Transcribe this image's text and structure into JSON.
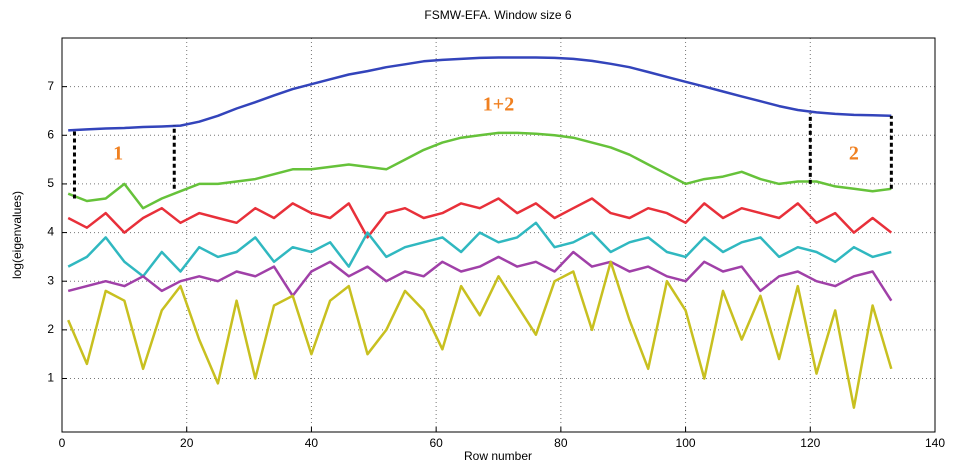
{
  "chart_data": {
    "type": "line",
    "title": "FSMW-EFA. Window size 6",
    "xlabel": "Row number",
    "ylabel": "log(eigenvalues)",
    "xlim": [
      0,
      140
    ],
    "xticks": [
      0,
      20,
      40,
      60,
      80,
      100,
      120,
      140
    ],
    "ylim": [
      -0.1,
      8
    ],
    "yticks": [
      1,
      2,
      3,
      4,
      5,
      6,
      7
    ],
    "grid": true,
    "x": [
      1,
      4,
      7,
      10,
      13,
      16,
      19,
      22,
      25,
      28,
      31,
      34,
      37,
      40,
      43,
      46,
      49,
      52,
      55,
      58,
      61,
      64,
      67,
      70,
      73,
      76,
      79,
      82,
      85,
      88,
      91,
      94,
      97,
      100,
      103,
      106,
      109,
      112,
      115,
      118,
      121,
      124,
      127,
      130,
      133
    ],
    "series": [
      {
        "color": "#3344bb",
        "values": [
          6.1,
          6.12,
          6.14,
          6.15,
          6.17,
          6.18,
          6.2,
          6.28,
          6.4,
          6.55,
          6.68,
          6.82,
          6.95,
          7.05,
          7.15,
          7.25,
          7.32,
          7.4,
          7.46,
          7.52,
          7.55,
          7.57,
          7.59,
          7.6,
          7.6,
          7.6,
          7.59,
          7.57,
          7.53,
          7.47,
          7.4,
          7.3,
          7.2,
          7.1,
          7.0,
          6.9,
          6.8,
          6.7,
          6.6,
          6.52,
          6.47,
          6.44,
          6.42,
          6.41,
          6.4
        ]
      },
      {
        "color": "#66c23a",
        "values": [
          4.8,
          4.65,
          4.7,
          5.0,
          4.5,
          4.7,
          4.85,
          5.0,
          5.0,
          5.05,
          5.1,
          5.2,
          5.3,
          5.3,
          5.35,
          5.4,
          5.35,
          5.3,
          5.5,
          5.7,
          5.85,
          5.95,
          6.0,
          6.05,
          6.05,
          6.03,
          6.0,
          5.95,
          5.85,
          5.75,
          5.6,
          5.4,
          5.2,
          5.0,
          5.1,
          5.15,
          5.25,
          5.1,
          5.0,
          5.05,
          5.05,
          4.95,
          4.9,
          4.85,
          4.9
        ]
      },
      {
        "color": "#e8303a",
        "values": [
          4.3,
          4.1,
          4.4,
          4.0,
          4.3,
          4.5,
          4.2,
          4.4,
          4.3,
          4.2,
          4.5,
          4.3,
          4.6,
          4.4,
          4.3,
          4.6,
          3.9,
          4.4,
          4.5,
          4.3,
          4.4,
          4.6,
          4.5,
          4.7,
          4.4,
          4.6,
          4.3,
          4.5,
          4.7,
          4.4,
          4.3,
          4.5,
          4.4,
          4.2,
          4.6,
          4.3,
          4.5,
          4.4,
          4.3,
          4.6,
          4.2,
          4.4,
          4.0,
          4.3,
          4.0
        ]
      },
      {
        "color": "#30b8c0",
        "values": [
          3.3,
          3.5,
          3.9,
          3.4,
          3.1,
          3.6,
          3.2,
          3.7,
          3.5,
          3.6,
          3.9,
          3.4,
          3.7,
          3.6,
          3.8,
          3.3,
          4.0,
          3.5,
          3.7,
          3.8,
          3.9,
          3.6,
          4.0,
          3.8,
          3.9,
          4.2,
          3.7,
          3.8,
          4.0,
          3.6,
          3.8,
          3.9,
          3.6,
          3.5,
          3.9,
          3.6,
          3.8,
          3.9,
          3.5,
          3.7,
          3.6,
          3.4,
          3.7,
          3.5,
          3.6
        ]
      },
      {
        "color": "#a040a8",
        "values": [
          2.8,
          2.9,
          3.0,
          2.9,
          3.1,
          2.8,
          3.0,
          3.1,
          3.0,
          3.2,
          3.1,
          3.3,
          2.7,
          3.2,
          3.4,
          3.1,
          3.3,
          3.0,
          3.2,
          3.1,
          3.4,
          3.2,
          3.3,
          3.5,
          3.3,
          3.4,
          3.2,
          3.6,
          3.3,
          3.4,
          3.2,
          3.3,
          3.1,
          3.0,
          3.4,
          3.2,
          3.3,
          2.8,
          3.1,
          3.2,
          3.0,
          2.9,
          3.1,
          3.2,
          2.6
        ]
      },
      {
        "color": "#c8c020",
        "values": [
          2.2,
          1.3,
          2.8,
          2.6,
          1.2,
          2.4,
          2.9,
          1.8,
          0.9,
          2.6,
          1.0,
          2.5,
          2.7,
          1.5,
          2.6,
          2.9,
          1.5,
          2.0,
          2.8,
          2.4,
          1.6,
          2.9,
          2.3,
          3.1,
          2.5,
          1.9,
          3.0,
          3.2,
          2.0,
          3.4,
          2.2,
          1.2,
          3.0,
          2.4,
          1.0,
          2.8,
          1.8,
          2.7,
          1.4,
          2.9,
          1.1,
          2.4,
          0.4,
          2.5,
          1.2
        ]
      }
    ],
    "dashed_lines": [
      {
        "x": 2,
        "y": [
          4.7,
          6.1
        ]
      },
      {
        "x": 18,
        "y": [
          4.9,
          6.2
        ]
      },
      {
        "x": 120,
        "y": [
          5.0,
          6.45
        ]
      },
      {
        "x": 133,
        "y": [
          4.9,
          6.4
        ]
      }
    ],
    "annotations": [
      {
        "text": "1",
        "x": 9,
        "y": 5.6
      },
      {
        "text": "1+2",
        "x": 70,
        "y": 6.6
      },
      {
        "text": "2",
        "x": 127,
        "y": 5.6
      }
    ],
    "annotation_color": "#f08020"
  }
}
